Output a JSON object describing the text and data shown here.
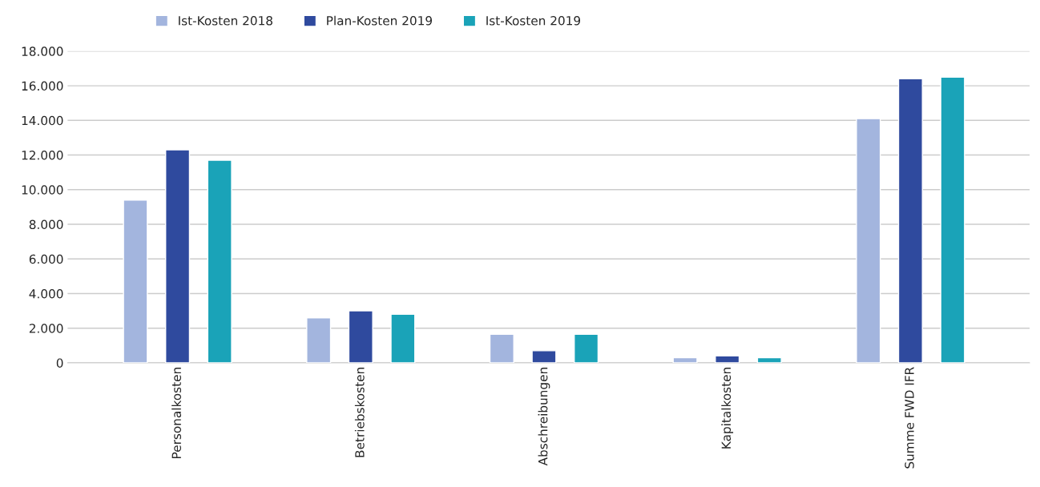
{
  "chart_data": {
    "type": "bar",
    "categories": [
      "Personalkosten",
      "Betriebskosten",
      "Abschreibungen",
      "Kapitalkosten",
      "Summe FWD IFR"
    ],
    "series": [
      {
        "name": "Ist-Kosten 2018",
        "color": "#a3b5de",
        "values": [
          9400,
          2600,
          1650,
          300,
          14100
        ]
      },
      {
        "name": "Plan-Kosten 2019",
        "color": "#2f4a9e",
        "values": [
          12300,
          3000,
          700,
          400,
          16400
        ]
      },
      {
        "name": "Ist-Kosten 2019",
        "color": "#1aa3b8",
        "values": [
          11700,
          2800,
          1650,
          300,
          16500
        ]
      }
    ],
    "ylim": [
      0,
      18000
    ],
    "yticks": [
      {
        "value": 0,
        "label": "0"
      },
      {
        "value": 2000,
        "label": "2.000"
      },
      {
        "value": 4000,
        "label": "4.000"
      },
      {
        "value": 6000,
        "label": "6.000"
      },
      {
        "value": 8000,
        "label": "8.000"
      },
      {
        "value": 10000,
        "label": "10.000"
      },
      {
        "value": 12000,
        "label": "12.000"
      },
      {
        "value": 14000,
        "label": "14.000"
      },
      {
        "value": 16000,
        "label": "16.000"
      },
      {
        "value": 18000,
        "label": "18.000"
      }
    ],
    "grid": "y",
    "legend": "top left"
  }
}
